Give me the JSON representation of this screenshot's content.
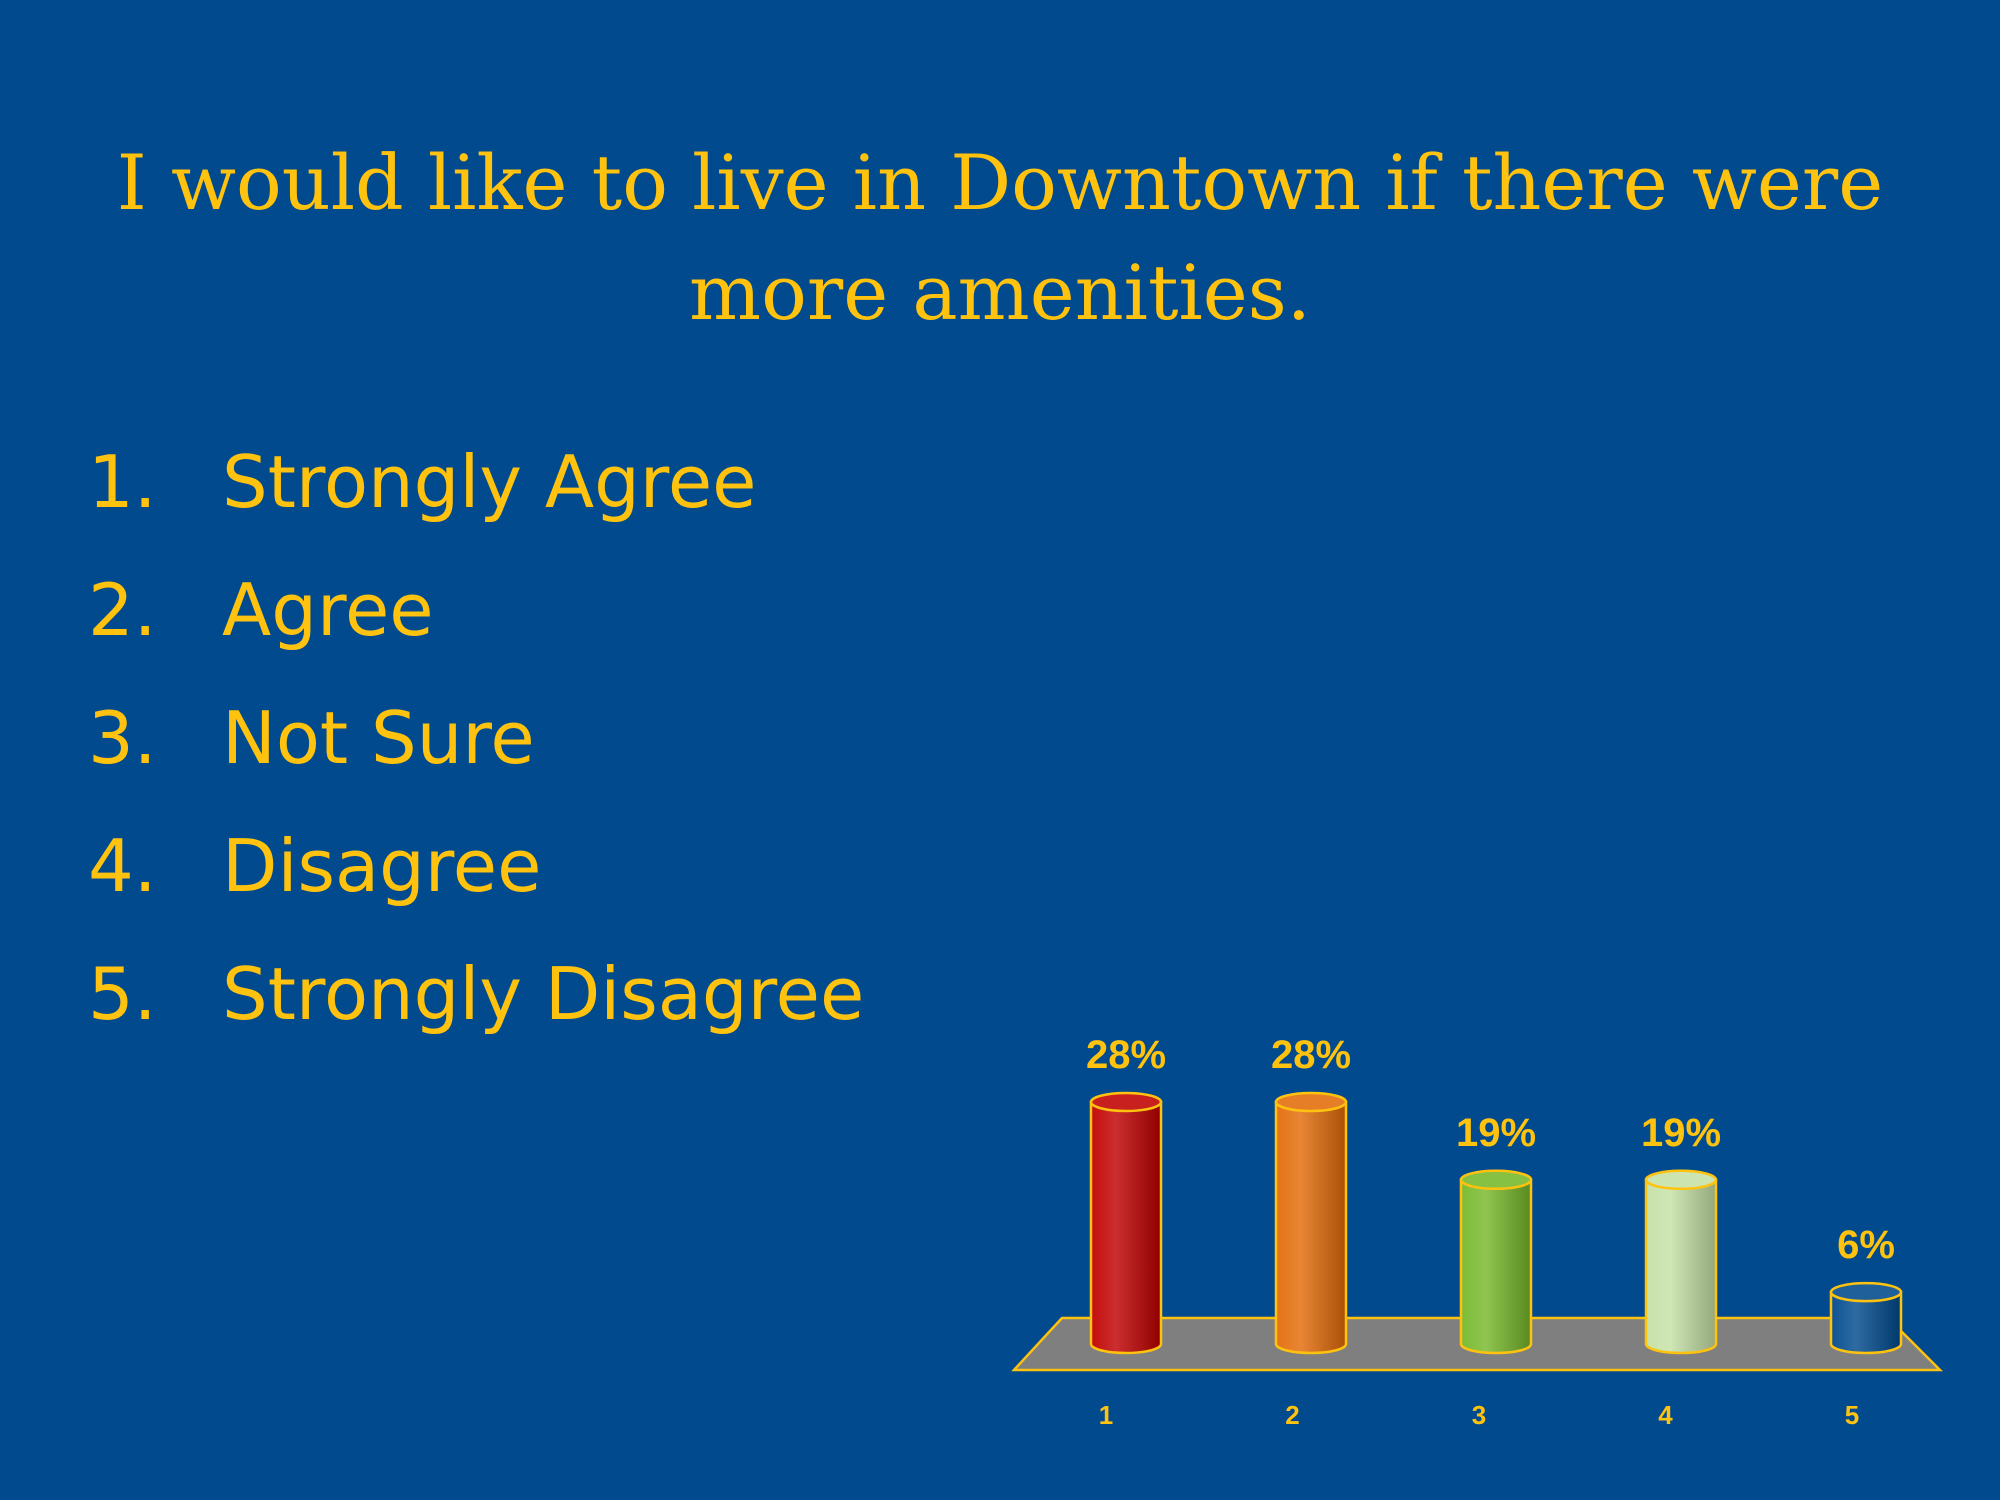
{
  "slide": {
    "title_line1": "I would like to live in Downtown if there were",
    "title_line2": "more amenities."
  },
  "options": [
    {
      "num": "1.",
      "label": "Strongly Agree"
    },
    {
      "num": "2.",
      "label": "Agree"
    },
    {
      "num": "3.",
      "label": "Not Sure"
    },
    {
      "num": "4.",
      "label": "Disagree"
    },
    {
      "num": "5.",
      "label": "Strongly Disagree"
    }
  ],
  "colors": {
    "background": "#004A8D",
    "text": "#FFC20E",
    "floor": "#7F7F7F"
  },
  "chart_data": {
    "type": "bar",
    "categories": [
      "1",
      "2",
      "3",
      "4",
      "5"
    ],
    "values": [
      28,
      28,
      19,
      19,
      6
    ],
    "data_labels": [
      "28%",
      "28%",
      "19%",
      "19%",
      "6%"
    ],
    "bar_colors": [
      "#C00000",
      "#E36C09",
      "#76B82A",
      "#C5E0A5",
      "#004A8D"
    ],
    "ylim": [
      0,
      28
    ],
    "grid": false,
    "legend": "none",
    "title": "",
    "xlabel": "",
    "ylabel": ""
  }
}
